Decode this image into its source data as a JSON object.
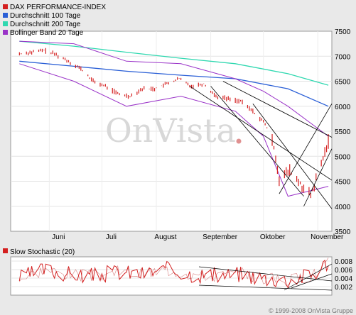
{
  "chart_data": [
    {
      "type": "candlestick",
      "title": "",
      "legend": [
        {
          "label": "DAX PERFORMANCE-INDEX",
          "color": "#d42020"
        },
        {
          "label": "Durchschnitt 100 Tage",
          "color": "#2a5fd6"
        },
        {
          "label": "Durchschnitt 200 Tage",
          "color": "#2fd8b0"
        },
        {
          "label": "Bollinger Band 20 Tage",
          "color": "#9a33c8"
        }
      ],
      "legend_position": "top-left",
      "x_tick_labels": [
        "Juni",
        "Juli",
        "August",
        "September",
        "Oktober",
        "November"
      ],
      "y_ticks": [
        3500,
        4000,
        4500,
        5000,
        5500,
        6000,
        6500,
        7000,
        7500
      ],
      "ylim": [
        3500,
        7500
      ],
      "grid": true,
      "series": [
        {
          "name": "DAX PERFORMANCE-INDEX",
          "dates": [
            "2008-05-15",
            "2008-05-22",
            "2008-05-29",
            "2008-06-05",
            "2008-06-12",
            "2008-06-19",
            "2008-06-26",
            "2008-07-03",
            "2008-07-10",
            "2008-07-17",
            "2008-07-24",
            "2008-07-31",
            "2008-08-07",
            "2008-08-14",
            "2008-08-21",
            "2008-08-28",
            "2008-09-04",
            "2008-09-11",
            "2008-09-18",
            "2008-09-25",
            "2008-10-02",
            "2008-10-07",
            "2008-10-10",
            "2008-10-16",
            "2008-10-23",
            "2008-10-28",
            "2008-11-04",
            "2008-11-07"
          ],
          "values": [
            7050,
            7080,
            7120,
            7030,
            6900,
            6750,
            6500,
            6400,
            6250,
            6200,
            6350,
            6350,
            6450,
            6550,
            6400,
            6450,
            6200,
            6150,
            6100,
            5900,
            5650,
            5200,
            4550,
            4700,
            4400,
            4200,
            4950,
            5300
          ]
        },
        {
          "name": "Durchschnitt 100 Tage",
          "dates": [
            "2008-05-15",
            "2008-06-15",
            "2008-07-15",
            "2008-08-15",
            "2008-09-15",
            "2008-10-15",
            "2008-11-07"
          ],
          "values": [
            6900,
            6800,
            6700,
            6620,
            6550,
            6350,
            6000
          ]
        },
        {
          "name": "Durchschnitt 200 Tage",
          "dates": [
            "2008-05-15",
            "2008-06-15",
            "2008-07-15",
            "2008-08-15",
            "2008-09-15",
            "2008-10-15",
            "2008-11-07"
          ],
          "values": [
            7300,
            7200,
            7080,
            6960,
            6850,
            6650,
            6420
          ]
        },
        {
          "name": "Bollinger Band 20 Tage (upper)",
          "dates": [
            "2008-05-15",
            "2008-06-15",
            "2008-07-15",
            "2008-08-15",
            "2008-09-15",
            "2008-10-01",
            "2008-10-15",
            "2008-11-07"
          ],
          "values": [
            7300,
            7250,
            6900,
            6850,
            6550,
            6300,
            6000,
            5400
          ]
        },
        {
          "name": "Bollinger Band 20 Tage (lower)",
          "dates": [
            "2008-05-15",
            "2008-06-15",
            "2008-07-15",
            "2008-08-15",
            "2008-09-15",
            "2008-10-01",
            "2008-10-15",
            "2008-11-07"
          ],
          "values": [
            6850,
            6500,
            6000,
            6200,
            5900,
            5400,
            4200,
            4400
          ]
        }
      ]
    },
    {
      "type": "line",
      "title": "",
      "legend": [
        {
          "label": "Slow Stochastic (20)",
          "color": "#d42020"
        }
      ],
      "legend_position": "top-left",
      "y_tick_labels": [
        "0.002",
        "0.004",
        "0.006",
        "0.008"
      ],
      "series": [
        {
          "name": "Slow Stochastic (20)",
          "dates": [
            "2008-05-15",
            "2008-05-29",
            "2008-06-12",
            "2008-06-26",
            "2008-07-10",
            "2008-07-24",
            "2008-08-07",
            "2008-08-21",
            "2008-09-04",
            "2008-09-18",
            "2008-10-02",
            "2008-10-16",
            "2008-10-30",
            "2008-11-07"
          ],
          "values": [
            0.004,
            0.006,
            0.005,
            0.0045,
            0.0055,
            0.005,
            0.006,
            0.005,
            0.0045,
            0.005,
            0.004,
            0.0035,
            0.005,
            0.008
          ]
        }
      ]
    }
  ],
  "watermark": {
    "text": "OnVista",
    "dot_color": "#d42020"
  },
  "copyright": "© 1999-2008 OnVista Gruppe"
}
